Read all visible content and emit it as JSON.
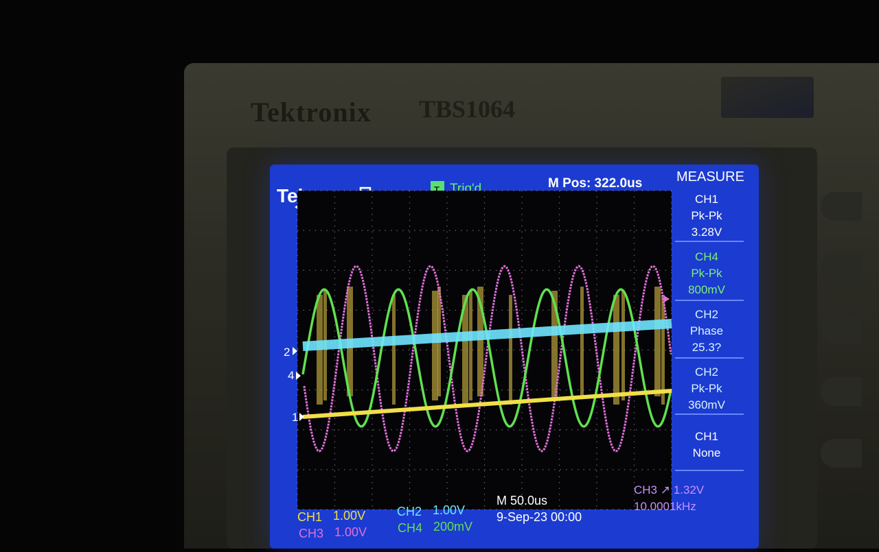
{
  "device": {
    "brand": "Tektronix",
    "model": "TBS1064"
  },
  "scope": {
    "logo": "Tek",
    "trigger_status": "Trig'd",
    "trigger_badge": "T",
    "m_pos": "M Pos: 322.0us",
    "measure_title": "MEASURE",
    "measurements": [
      {
        "source": "CH1",
        "type": "Pk-Pk",
        "value": "3.28V"
      },
      {
        "source": "CH4",
        "type": "Pk-Pk",
        "value": "800mV"
      },
      {
        "source": "CH2",
        "type": "Phase",
        "value": "25.3?"
      },
      {
        "source": "CH2",
        "type": "Pk-Pk",
        "value": "360mV"
      },
      {
        "source": "CH1",
        "type": "None",
        "value": ""
      }
    ],
    "channels": {
      "ch1_label": "CH1",
      "ch1_scale": "1.00V",
      "ch2_label": "CH2",
      "ch2_scale": "1.00V",
      "ch3_label": "CH3",
      "ch3_scale": "1.00V",
      "ch4_label": "CH4",
      "ch4_scale": "200mV"
    },
    "timebase": "M 50.0us",
    "date": "9-Sep-23 00:00",
    "trigger_info": "CH3 ↗ 1.32V",
    "frequency": "10.0001kHz",
    "markers": {
      "ch1": "1",
      "ch2": "2",
      "ch4": "4"
    },
    "colors": {
      "ch1": "#f0e048",
      "ch2": "#6fe6ff",
      "ch3": "#e070d8",
      "ch4": "#60e050",
      "panel": "#1c3bd0",
      "grid_bg": "#050508"
    }
  }
}
